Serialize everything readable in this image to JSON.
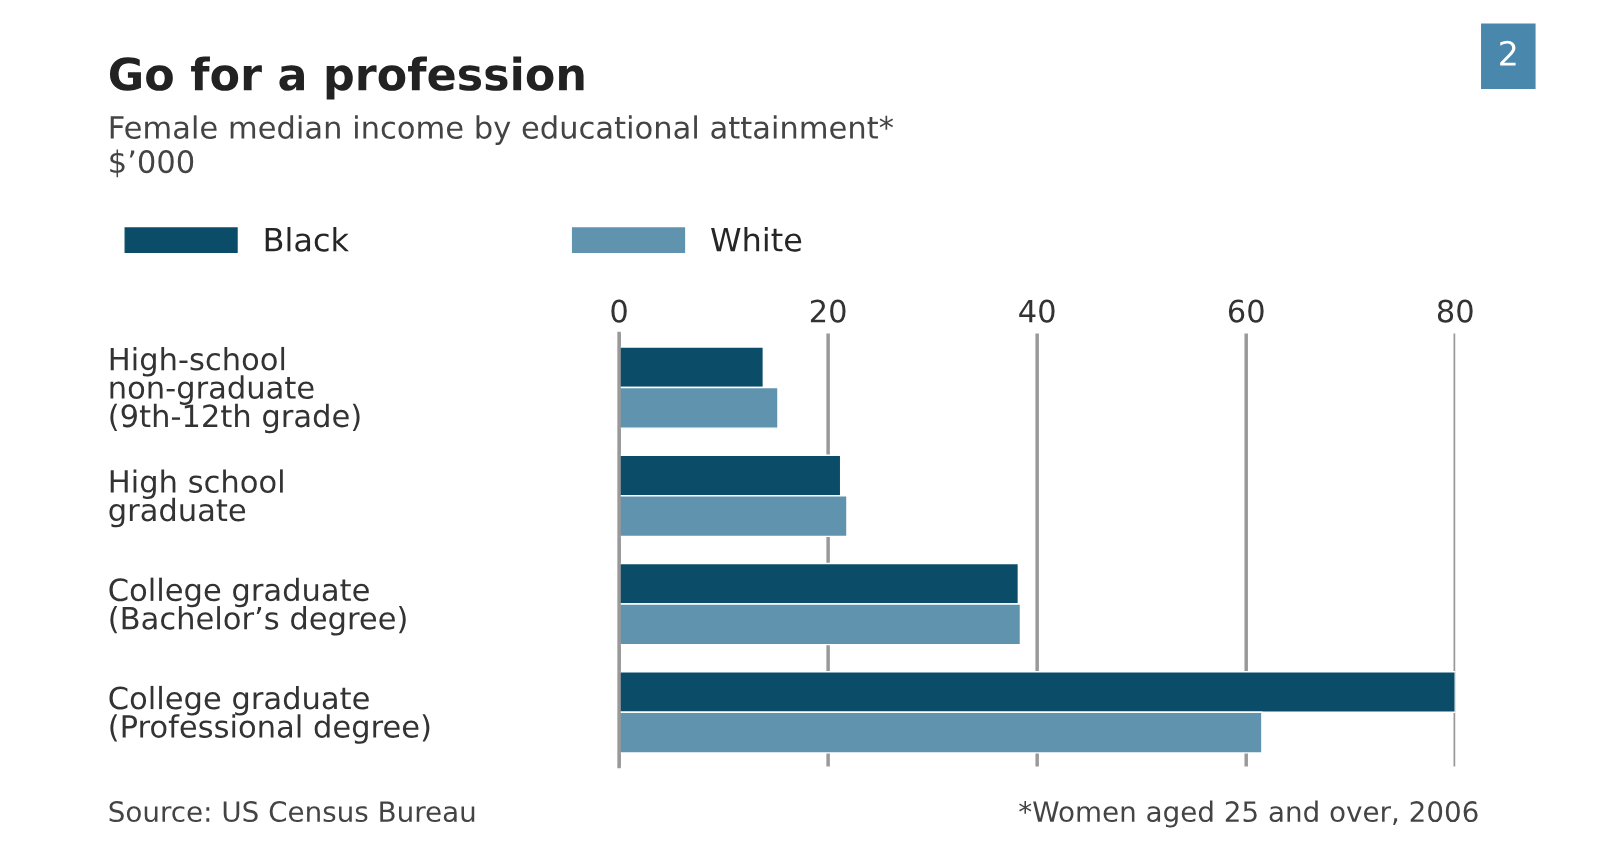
{
  "chart_data": {
    "type": "bar",
    "orientation": "horizontal",
    "title": "Go for a profession",
    "subtitle": "Female median income by educational attainment*\n$’000",
    "categories": [
      "High-school\nnon-graduate\n(9th-12th grade)",
      "High school\ngraduate",
      "College graduate\n(Bachelor’s degree)",
      "College graduate\n(Professional degree)"
    ],
    "series": [
      {
        "name": "Black",
        "color": "#0b4d68",
        "values": [
          13.8,
          21.2,
          38.2,
          80
        ]
      },
      {
        "name": "White",
        "color": "#5f93ae",
        "values": [
          15.2,
          21.8,
          38.4,
          61.5
        ]
      }
    ],
    "xlim": [
      0,
      80
    ],
    "xticks": [
      0,
      20,
      40,
      60,
      80
    ],
    "grid": "x",
    "legend": "top",
    "annotations": [
      "2",
      "Source: US Census Bureau",
      "*Women aged 25 and over, 2006"
    ]
  }
}
